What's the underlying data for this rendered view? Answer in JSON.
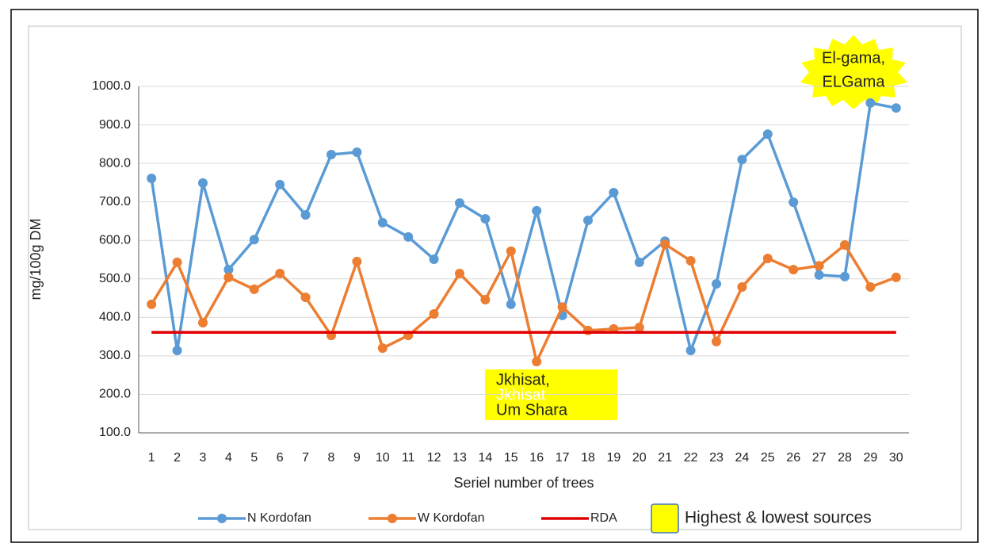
{
  "chart_data": {
    "type": "line",
    "x_label": "Seriel number of trees",
    "y_label": "mg/100g DM",
    "categories": [
      "1",
      "2",
      "3",
      "4",
      "5",
      "6",
      "7",
      "8",
      "9",
      "10",
      "11",
      "12",
      "13",
      "14",
      "15",
      "16",
      "17",
      "18",
      "19",
      "20",
      "21",
      "22",
      "23",
      "24",
      "25",
      "26",
      "27",
      "28",
      "29",
      "30"
    ],
    "series": [
      {
        "name": "N Kordofan",
        "color": "#5b9bd5",
        "marker": true,
        "values": [
          761,
          314,
          749,
          524,
          602,
          745,
          666,
          823,
          829,
          646,
          609,
          551,
          697,
          656,
          434,
          677,
          405,
          652,
          724,
          543,
          598,
          314,
          487,
          810,
          876,
          699,
          510,
          506,
          957,
          944
        ]
      },
      {
        "name": "W Kordofan",
        "color": "#ed7d31",
        "marker": true,
        "values": [
          434,
          543,
          386,
          504,
          473,
          514,
          452,
          353,
          545,
          320,
          353,
          409,
          514,
          446,
          572,
          285,
          427,
          366,
          370,
          374,
          590,
          547,
          337,
          479,
          553,
          524,
          534,
          588,
          479,
          504
        ]
      },
      {
        "name": "RDA",
        "color": "#e00000",
        "marker": false,
        "values": [
          361,
          361,
          361,
          361,
          361,
          361,
          361,
          361,
          361,
          361,
          361,
          361,
          361,
          361,
          361,
          361,
          361,
          361,
          361,
          361,
          361,
          361,
          361,
          361,
          361,
          361,
          361,
          361,
          361,
          361
        ]
      }
    ],
    "ylim": [
      100,
      1000
    ],
    "yticks": [
      {
        "value": 100,
        "label": "100.0"
      },
      {
        "value": 200,
        "label": "200.0"
      },
      {
        "value": 300,
        "label": "300.0"
      },
      {
        "value": 400,
        "label": "400.0"
      },
      {
        "value": 500,
        "label": "500.0"
      },
      {
        "value": 600,
        "label": "600.0"
      },
      {
        "value": 700,
        "label": "700.0"
      },
      {
        "value": 800,
        "label": "800.0"
      },
      {
        "value": 900,
        "label": "900.0"
      },
      {
        "value": 1000,
        "label": "1000.0"
      }
    ],
    "grid": true,
    "highlight_legend": "Highest & lowest sources",
    "annotations": [
      {
        "lines": [
          "El-gama,",
          "ELGama"
        ]
      },
      {
        "lines": [
          "Jkhisat,",
          "Jkhisat",
          "Um Shara"
        ]
      }
    ]
  }
}
